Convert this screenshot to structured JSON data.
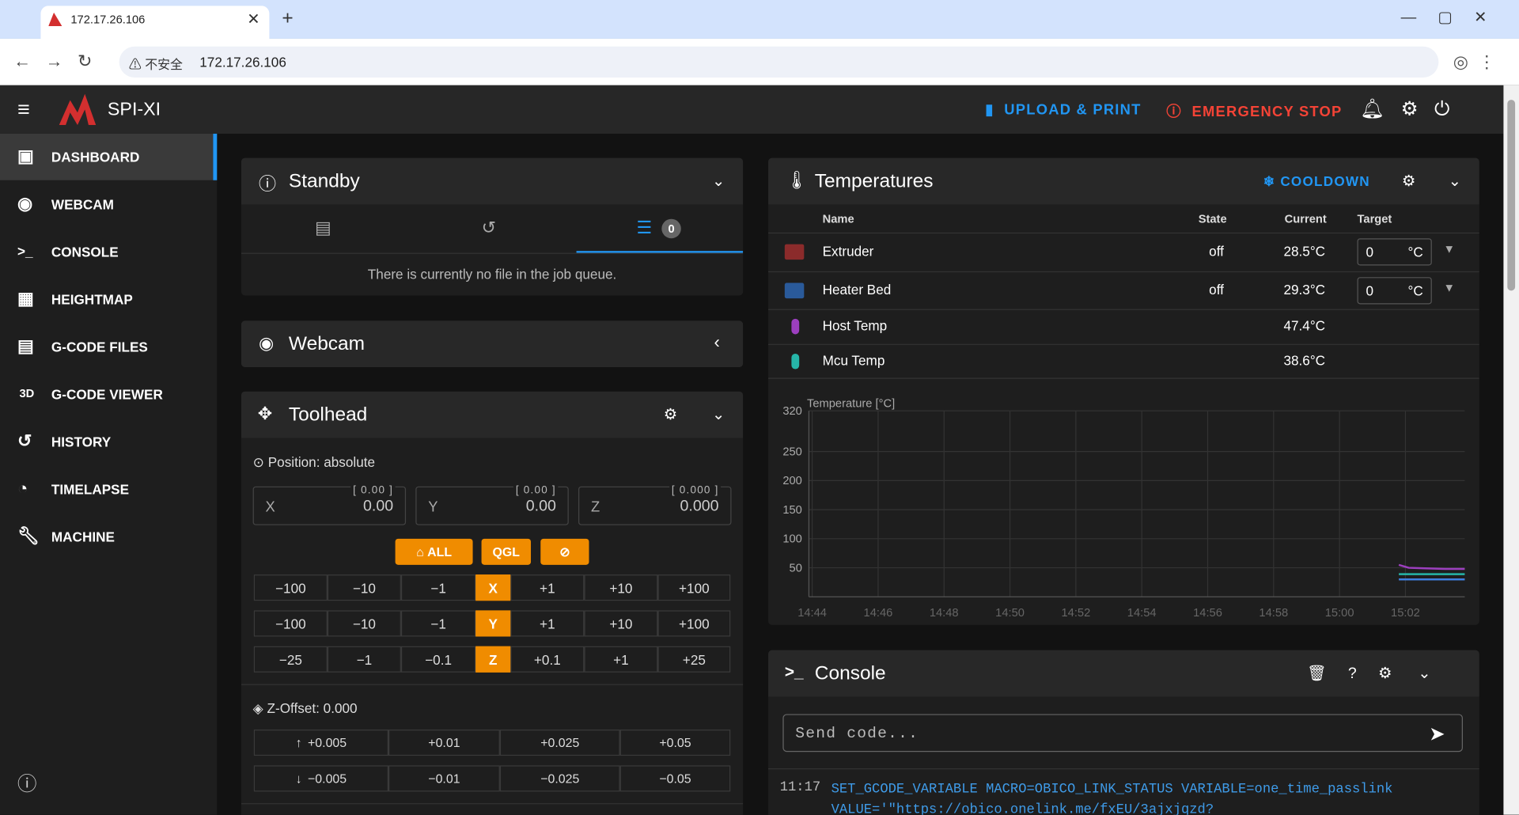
{
  "browser": {
    "tab_title": "172.17.26.106",
    "security": "不安全",
    "url": "172.17.26.106"
  },
  "app": {
    "name": "SPI-XI",
    "upload": "UPLOAD & PRINT",
    "estop": "EMERGENCY STOP"
  },
  "nav": {
    "items": [
      "DASHBOARD",
      "WEBCAM",
      "CONSOLE",
      "HEIGHTMAP",
      "G-CODE FILES",
      "G-CODE VIEWER",
      "HISTORY",
      "TIMELAPSE",
      "MACHINE"
    ],
    "viewer_icon": "3D"
  },
  "standby": {
    "title": "Standby",
    "queue_count": 0,
    "empty": "There is currently no file in the job queue."
  },
  "webcam": {
    "title": "Webcam"
  },
  "toolhead": {
    "title": "Toolhead",
    "position_mode": "Position: absolute",
    "axes": [
      {
        "name": "X",
        "value": "0.00",
        "target": "[ 0.00 ]"
      },
      {
        "name": "Y",
        "value": "0.00",
        "target": "[ 0.00 ]"
      },
      {
        "name": "Z",
        "value": "0.000",
        "target": "[ 0.000 ]"
      }
    ],
    "home_all": "ALL",
    "qgl": "QGL",
    "move_rows": [
      {
        "axis": "X",
        "steps": [
          "−100",
          "−10",
          "−1",
          "+1",
          "+10",
          "+100"
        ]
      },
      {
        "axis": "Y",
        "steps": [
          "−100",
          "−10",
          "−1",
          "+1",
          "+10",
          "+100"
        ]
      },
      {
        "axis": "Z",
        "steps": [
          "−25",
          "−1",
          "−0.1",
          "+0.1",
          "+1",
          "+25"
        ]
      }
    ],
    "zoffset_label": "Z-Offset: 0.000",
    "zoffset_up": [
      "+0.005",
      "+0.01",
      "+0.025",
      "+0.05"
    ],
    "zoffset_down": [
      "−0.005",
      "−0.01",
      "−0.025",
      "−0.05"
    ]
  },
  "temperatures": {
    "title": "Temperatures",
    "cooldown": "COOLDOWN",
    "headers": [
      "Name",
      "State",
      "Current",
      "Target"
    ],
    "rows": [
      {
        "name": "Extruder",
        "state": "off",
        "current": "28.5°C",
        "target": "0",
        "unit": "°C"
      },
      {
        "name": "Heater Bed",
        "state": "off",
        "current": "29.3°C",
        "target": "0",
        "unit": "°C"
      },
      {
        "name": "Host Temp",
        "current": "47.4°C"
      },
      {
        "name": "Mcu Temp",
        "current": "38.6°C"
      }
    ],
    "chart": {
      "type": "line",
      "y_label": "Temperature [°C]",
      "ylim": [
        0,
        320
      ],
      "yticks": [
        50,
        100,
        150,
        200,
        250,
        320
      ],
      "xlim": [
        883.9,
        903.8
      ],
      "xticks": [
        {
          "value": 884,
          "label": "14:44"
        },
        {
          "value": 886,
          "label": "14:46"
        },
        {
          "value": 888,
          "label": "14:48"
        },
        {
          "value": 890,
          "label": "14:50"
        },
        {
          "value": 892,
          "label": "14:52"
        },
        {
          "value": 894,
          "label": "14:54"
        },
        {
          "value": 896,
          "label": "14:56"
        },
        {
          "value": 898,
          "label": "14:58"
        },
        {
          "value": 900,
          "label": "15:00"
        },
        {
          "value": 902,
          "label": "15:02"
        }
      ],
      "grid": true,
      "series": [
        {
          "color": "#9c3fbf",
          "x": [
            901.8,
            902.1,
            902.6,
            903.2,
            903.8
          ],
          "values": [
            55,
            50,
            49,
            48,
            48
          ]
        },
        {
          "color": "#26b5a8",
          "x": [
            901.8,
            902.1,
            902.6,
            903.2,
            903.8
          ],
          "values": [
            39,
            39,
            39,
            39,
            39
          ]
        },
        {
          "color": "#3f7fe0",
          "x": [
            901.8,
            902.1,
            902.6,
            903.2,
            903.8
          ],
          "values": [
            30,
            30,
            30,
            30,
            30
          ]
        }
      ]
    }
  },
  "console": {
    "title": "Console",
    "placeholder": "Send code...",
    "log": [
      {
        "time": "11:17",
        "text": "SET_GCODE_VARIABLE MACRO=OBICO_LINK_STATUS VARIABLE=one_time_passlink VALUE='\"https://obico.onelink.me/fxEU/3ajxjqzd?"
      }
    ]
  }
}
